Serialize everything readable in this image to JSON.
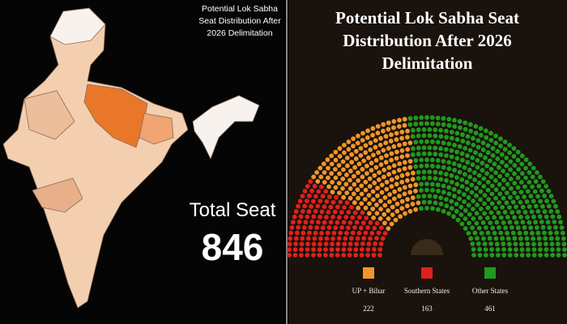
{
  "left_panel": {
    "title": "Potential Lok Sabha Seat Distribution After 2026 Delimitation",
    "total_label": "Total Seat",
    "total_value": 846
  },
  "chart_data": {
    "type": "parliament",
    "title": "Potential Lok Sabha Seat Distribution After 2026 Delimitation",
    "categories": [
      "UP + Bihar",
      "Southern States",
      "Other States"
    ],
    "values": [
      222,
      163,
      461
    ],
    "colors": [
      "#f0962a",
      "#e0201b",
      "#1f9a1f"
    ],
    "order": [
      1,
      0,
      2
    ]
  }
}
